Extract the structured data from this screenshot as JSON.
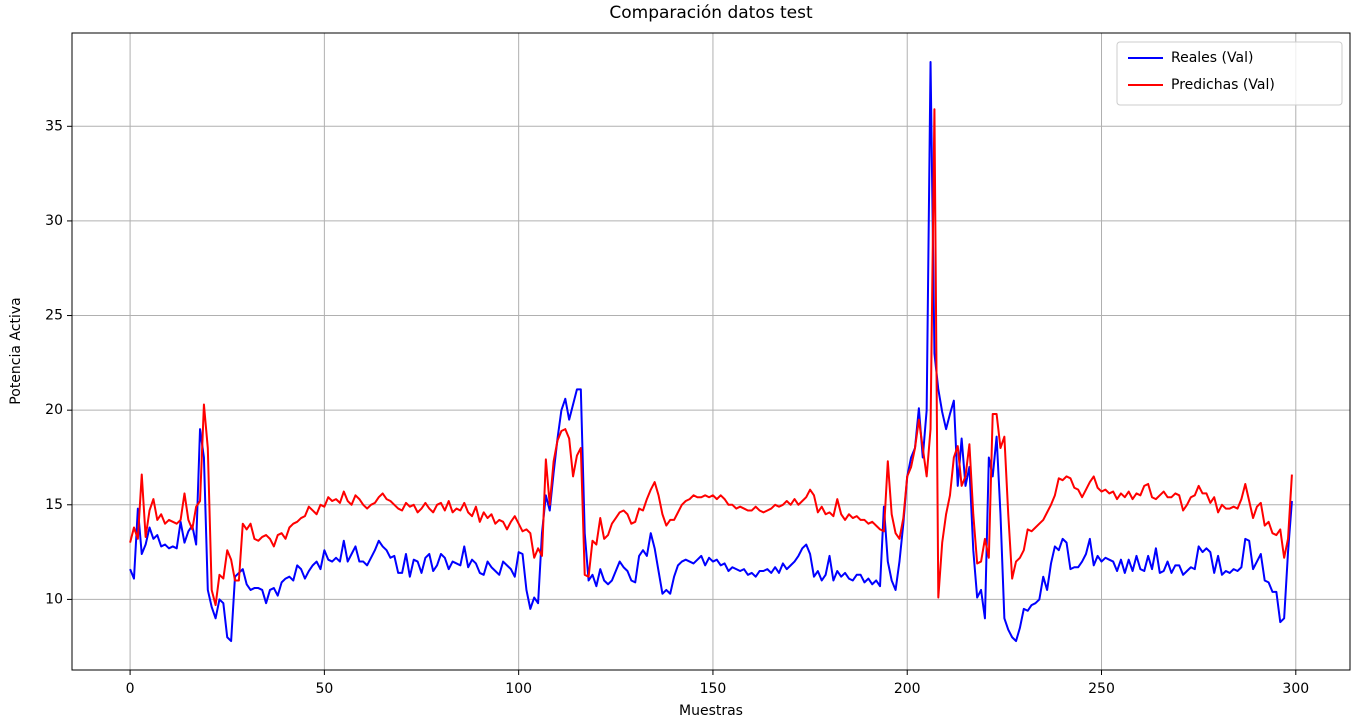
{
  "chart_data": {
    "type": "line",
    "title": "Comparación datos test",
    "xlabel": "Muestras",
    "ylabel": "Potencia Activa",
    "x": [
      0,
      1,
      2,
      3,
      4,
      5,
      6,
      7,
      8,
      9,
      10,
      11,
      12,
      13,
      14,
      15,
      16,
      17,
      18,
      19,
      20,
      21,
      22,
      23,
      24,
      25,
      26,
      27,
      28,
      29,
      30,
      31,
      32,
      33,
      34,
      35,
      36,
      37,
      38,
      39,
      40,
      41,
      42,
      43,
      44,
      45,
      46,
      47,
      48,
      49,
      50,
      51,
      52,
      53,
      54,
      55,
      56,
      57,
      58,
      59,
      60,
      61,
      62,
      63,
      64,
      65,
      66,
      67,
      68,
      69,
      70,
      71,
      72,
      73,
      74,
      75,
      76,
      77,
      78,
      79,
      80,
      81,
      82,
      83,
      84,
      85,
      86,
      87,
      88,
      89,
      90,
      91,
      92,
      93,
      94,
      95,
      96,
      97,
      98,
      99,
      100,
      101,
      102,
      103,
      104,
      105,
      106,
      107,
      108,
      109,
      110,
      111,
      112,
      113,
      114,
      115,
      116,
      117,
      118,
      119,
      120,
      121,
      122,
      123,
      124,
      125,
      126,
      127,
      128,
      129,
      130,
      131,
      132,
      133,
      134,
      135,
      136,
      137,
      138,
      139,
      140,
      141,
      142,
      143,
      144,
      145,
      146,
      147,
      148,
      149,
      150,
      151,
      152,
      153,
      154,
      155,
      156,
      157,
      158,
      159,
      160,
      161,
      162,
      163,
      164,
      165,
      166,
      167,
      168,
      169,
      170,
      171,
      172,
      173,
      174,
      175,
      176,
      177,
      178,
      179,
      180,
      181,
      182,
      183,
      184,
      185,
      186,
      187,
      188,
      189,
      190,
      191,
      192,
      193,
      194,
      195,
      196,
      197,
      198,
      199,
      200,
      201,
      202,
      203,
      204,
      205,
      206,
      207,
      208,
      209,
      210,
      211,
      212,
      213,
      214,
      215,
      216,
      217,
      218,
      219,
      220,
      221,
      222,
      223,
      224,
      225,
      226,
      227,
      228,
      229,
      230,
      231,
      232,
      233,
      234,
      235,
      236,
      237,
      238,
      239,
      240,
      241,
      242,
      243,
      244,
      245,
      246,
      247,
      248,
      249,
      250,
      251,
      252,
      253,
      254,
      255,
      256,
      257,
      258,
      259,
      260,
      261,
      262,
      263,
      264,
      265,
      266,
      267,
      268,
      269,
      270,
      271,
      272,
      273,
      274,
      275,
      276,
      277,
      278,
      279,
      280,
      281,
      282,
      283,
      284,
      285,
      286,
      287,
      288,
      289,
      290,
      291,
      292,
      293,
      294,
      295,
      296,
      297,
      298,
      299
    ],
    "series": [
      {
        "name": "Reales (Val)",
        "color": "#0000ff",
        "values": [
          11.6,
          11.1,
          14.8,
          12.4,
          12.9,
          13.8,
          13.2,
          13.4,
          12.8,
          12.9,
          12.7,
          12.8,
          12.7,
          14.1,
          13.0,
          13.6,
          13.9,
          12.9,
          19.0,
          17.5,
          10.5,
          9.6,
          9.0,
          10.0,
          9.8,
          8.0,
          7.8,
          11.2,
          11.4,
          11.6,
          10.8,
          10.5,
          10.6,
          10.6,
          10.5,
          9.8,
          10.5,
          10.6,
          10.2,
          10.9,
          11.1,
          11.2,
          11.0,
          11.8,
          11.6,
          11.1,
          11.5,
          11.8,
          12.0,
          11.6,
          12.6,
          12.1,
          12.0,
          12.2,
          12.0,
          13.1,
          12.0,
          12.4,
          12.8,
          12.0,
          12.0,
          11.8,
          12.2,
          12.6,
          13.1,
          12.8,
          12.6,
          12.2,
          12.3,
          11.4,
          11.4,
          12.4,
          11.2,
          12.1,
          12.0,
          11.4,
          12.2,
          12.4,
          11.5,
          11.8,
          12.4,
          12.2,
          11.6,
          12.0,
          11.9,
          11.8,
          12.8,
          11.7,
          12.1,
          11.9,
          11.4,
          11.3,
          12.0,
          11.7,
          11.5,
          11.3,
          12.0,
          11.8,
          11.6,
          11.2,
          12.5,
          12.4,
          10.5,
          9.5,
          10.1,
          9.8,
          13.5,
          15.5,
          14.7,
          16.7,
          18.5,
          20.0,
          20.6,
          19.5,
          20.3,
          21.1,
          21.1,
          13.5,
          11.0,
          11.3,
          10.7,
          11.6,
          11.0,
          10.8,
          11.0,
          11.5,
          12.0,
          11.7,
          11.5,
          11.0,
          10.9,
          12.3,
          12.6,
          12.3,
          13.5,
          12.7,
          11.5,
          10.3,
          10.5,
          10.3,
          11.2,
          11.8,
          12.0,
          12.1,
          12.0,
          11.9,
          12.1,
          12.3,
          11.8,
          12.2,
          12.0,
          12.1,
          11.8,
          11.9,
          11.5,
          11.7,
          11.6,
          11.5,
          11.6,
          11.3,
          11.4,
          11.2,
          11.5,
          11.5,
          11.6,
          11.4,
          11.7,
          11.4,
          11.9,
          11.6,
          11.8,
          12.0,
          12.3,
          12.7,
          12.9,
          12.4,
          11.2,
          11.5,
          11.0,
          11.3,
          12.3,
          11.0,
          11.5,
          11.2,
          11.4,
          11.1,
          11.0,
          11.3,
          11.3,
          10.9,
          11.1,
          10.8,
          11.0,
          10.7,
          14.9,
          12.0,
          11.0,
          10.5,
          12.0,
          14.0,
          16.5,
          17.5,
          18.0,
          20.1,
          17.5,
          20.0,
          38.4,
          23.0,
          21.1,
          19.9,
          19.0,
          19.8,
          20.5,
          16.0,
          18.5,
          16.0,
          17.0,
          12.6,
          10.1,
          10.5,
          9.0,
          17.5,
          16.5,
          18.6,
          14.5,
          9.0,
          8.4,
          8.0,
          7.8,
          8.5,
          9.5,
          9.4,
          9.7,
          9.8,
          10.0,
          11.2,
          10.5,
          11.9,
          12.8,
          12.6,
          13.2,
          13.0,
          11.6,
          11.7,
          11.7,
          12.0,
          12.4,
          13.2,
          11.8,
          12.3,
          12.0,
          12.2,
          12.1,
          12.0,
          11.5,
          12.1,
          11.4,
          12.1,
          11.5,
          12.3,
          11.6,
          11.5,
          12.3,
          11.6,
          12.7,
          11.4,
          11.5,
          12.0,
          11.4,
          11.8,
          11.8,
          11.3,
          11.5,
          11.7,
          11.6,
          12.8,
          12.5,
          12.7,
          12.5,
          11.4,
          12.3,
          11.3,
          11.5,
          11.4,
          11.6,
          11.5,
          11.7,
          13.2,
          13.1,
          11.6,
          12.0,
          12.4,
          11.0,
          10.9,
          10.4,
          10.4,
          8.8,
          9.0,
          12.5,
          15.2
        ]
      },
      {
        "name": "Predichas (Val)",
        "color": "#ff0000",
        "values": [
          13.0,
          13.8,
          13.2,
          16.6,
          13.3,
          14.7,
          15.3,
          14.2,
          14.5,
          14.0,
          14.2,
          14.1,
          14.0,
          14.2,
          15.6,
          14.2,
          13.7,
          14.9,
          15.2,
          20.3,
          18.0,
          10.5,
          9.7,
          11.3,
          11.1,
          12.6,
          12.1,
          11.0,
          11.0,
          14.0,
          13.7,
          14.0,
          13.2,
          13.1,
          13.3,
          13.4,
          13.2,
          12.8,
          13.4,
          13.5,
          13.2,
          13.8,
          14.0,
          14.1,
          14.3,
          14.4,
          14.9,
          14.7,
          14.5,
          15.0,
          14.9,
          15.4,
          15.2,
          15.3,
          15.1,
          15.7,
          15.2,
          15.0,
          15.5,
          15.3,
          15.0,
          14.8,
          15.0,
          15.1,
          15.4,
          15.6,
          15.3,
          15.2,
          15.0,
          14.8,
          14.7,
          15.1,
          14.9,
          15.0,
          14.6,
          14.8,
          15.1,
          14.8,
          14.6,
          15.0,
          15.1,
          14.7,
          15.2,
          14.6,
          14.8,
          14.7,
          15.1,
          14.6,
          14.4,
          14.9,
          14.1,
          14.6,
          14.3,
          14.5,
          14.0,
          14.2,
          14.1,
          13.7,
          14.1,
          14.4,
          14.0,
          13.6,
          13.7,
          13.5,
          12.2,
          12.7,
          12.3,
          17.4,
          15.0,
          17.3,
          18.4,
          18.9,
          19.0,
          18.5,
          16.5,
          17.6,
          18.0,
          11.3,
          11.2,
          13.1,
          12.9,
          14.3,
          13.2,
          13.4,
          14.0,
          14.3,
          14.6,
          14.7,
          14.5,
          14.0,
          14.1,
          14.8,
          14.7,
          15.3,
          15.8,
          16.2,
          15.5,
          14.5,
          13.9,
          14.2,
          14.2,
          14.6,
          15.0,
          15.2,
          15.3,
          15.5,
          15.4,
          15.4,
          15.5,
          15.4,
          15.5,
          15.3,
          15.5,
          15.3,
          15.0,
          15.0,
          14.8,
          14.9,
          14.8,
          14.7,
          14.7,
          14.9,
          14.7,
          14.6,
          14.7,
          14.8,
          15.0,
          14.9,
          15.0,
          15.2,
          15.0,
          15.3,
          15.0,
          15.2,
          15.4,
          15.8,
          15.5,
          14.6,
          14.9,
          14.5,
          14.6,
          14.4,
          15.3,
          14.5,
          14.2,
          14.5,
          14.3,
          14.4,
          14.2,
          14.2,
          14.0,
          14.1,
          13.9,
          13.7,
          13.6,
          17.3,
          14.5,
          13.5,
          13.2,
          14.3,
          16.5,
          17.0,
          18.0,
          19.5,
          18.0,
          16.5,
          19.0,
          35.9,
          10.1,
          13.0,
          14.5,
          15.5,
          17.5,
          18.1,
          16.0,
          16.5,
          18.2,
          14.5,
          11.9,
          12.0,
          13.2,
          12.2,
          19.8,
          19.8,
          18.0,
          18.6,
          14.5,
          11.1,
          12.0,
          12.2,
          12.6,
          13.7,
          13.6,
          13.8,
          14.0,
          14.2,
          14.6,
          15.0,
          15.5,
          16.4,
          16.3,
          16.5,
          16.4,
          15.9,
          15.8,
          15.4,
          15.8,
          16.2,
          16.5,
          15.9,
          15.7,
          15.8,
          15.6,
          15.7,
          15.3,
          15.6,
          15.4,
          15.7,
          15.3,
          15.6,
          15.5,
          16.0,
          16.1,
          15.4,
          15.3,
          15.5,
          15.7,
          15.4,
          15.4,
          15.6,
          15.5,
          14.7,
          15.0,
          15.4,
          15.5,
          16.0,
          15.6,
          15.6,
          15.1,
          15.4,
          14.6,
          15.0,
          14.8,
          14.8,
          14.9,
          14.8,
          15.3,
          16.1,
          15.2,
          14.3,
          14.9,
          15.1,
          13.9,
          14.1,
          13.5,
          13.4,
          13.7,
          12.2,
          13.2,
          16.6
        ]
      }
    ],
    "xlim": [
      -14.95,
      313.95
    ],
    "xticks": [
      0,
      50,
      100,
      150,
      200,
      250,
      300
    ],
    "ylim": [
      6.27,
      39.93
    ],
    "yticks": [
      10,
      15,
      20,
      25,
      30,
      35
    ],
    "grid": true,
    "legend": "upper right"
  }
}
